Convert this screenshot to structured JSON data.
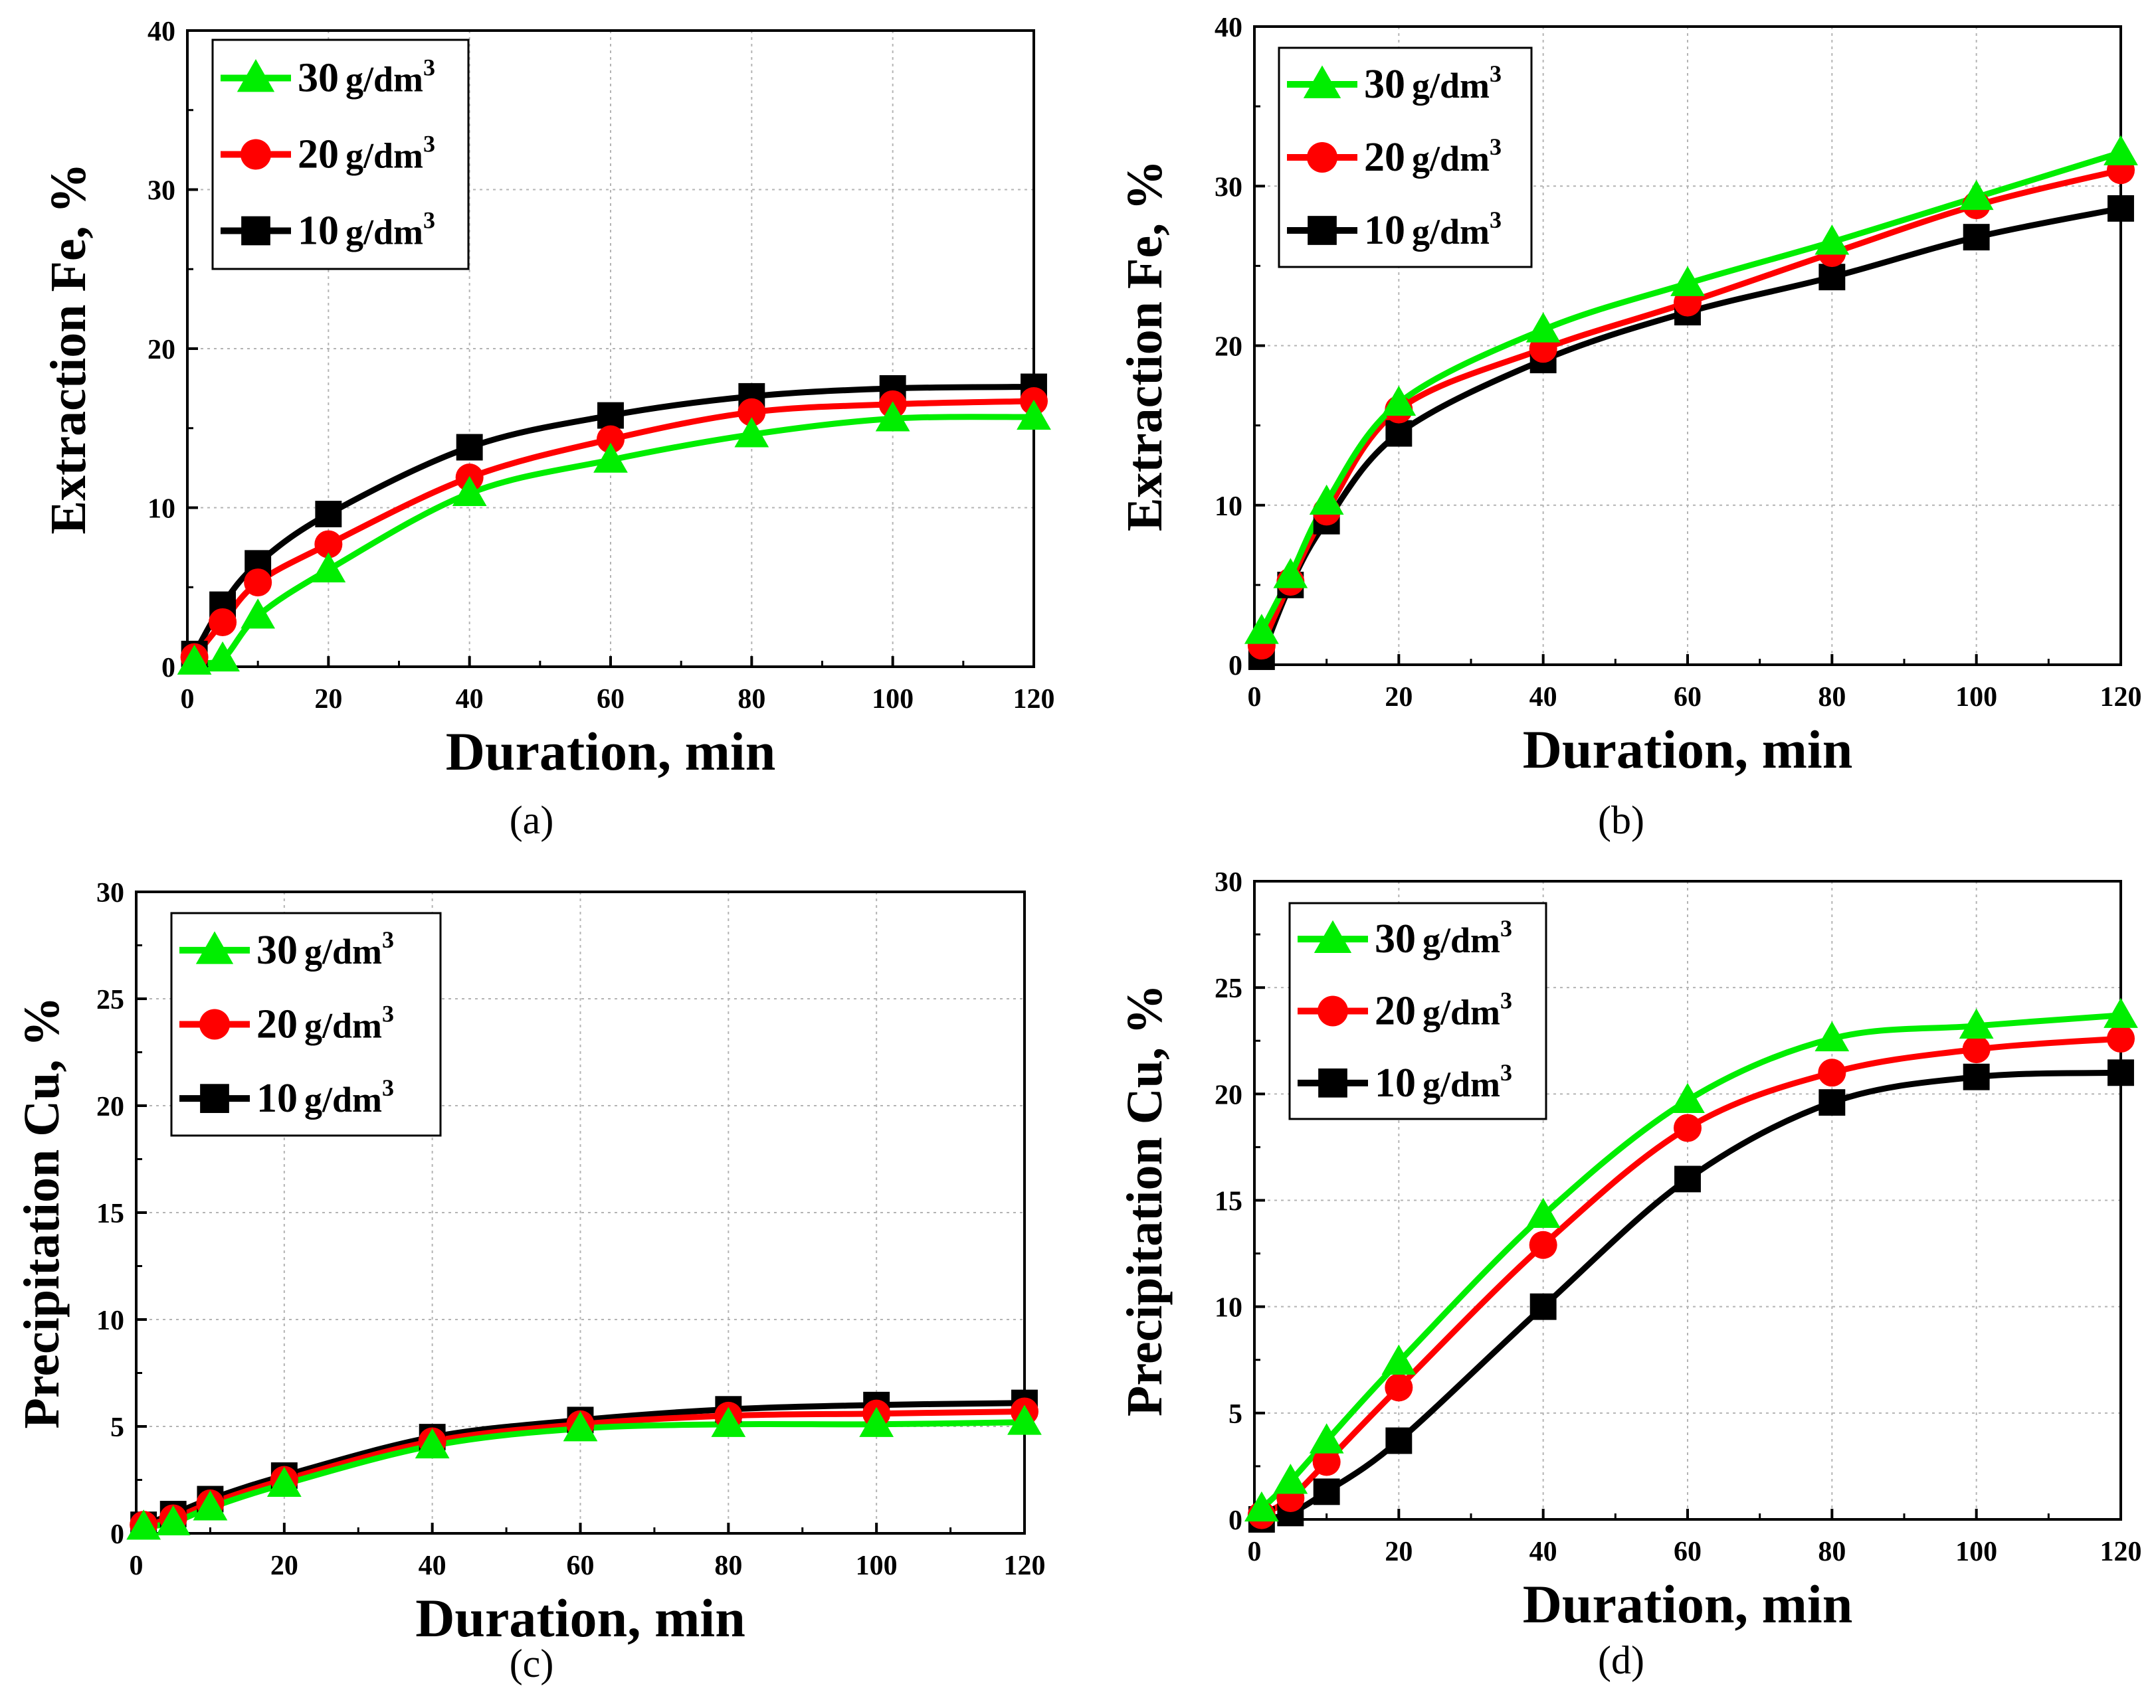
{
  "chart_data": [
    {
      "type": "line",
      "panel_label": "(a)",
      "xlabel": "Duration,  min",
      "ylabel": "Extraction Fe,  %",
      "xlim": [
        0,
        120
      ],
      "ylim": [
        0,
        40
      ],
      "xticks": [
        0,
        20,
        40,
        60,
        80,
        100,
        120
      ],
      "yticks": [
        0,
        10,
        20,
        30,
        40
      ],
      "grid": true,
      "legend_position": "top-left",
      "series": [
        {
          "name": "30 g/dm³",
          "label_num": "30",
          "label_unit": "g/dm",
          "color": "#00ee00",
          "marker": "triangle",
          "x": [
            1,
            5,
            10,
            20,
            40,
            60,
            80,
            100,
            120
          ],
          "y": [
            0.3,
            0.5,
            3.2,
            6.1,
            10.9,
            13.0,
            14.6,
            15.6,
            15.7
          ]
        },
        {
          "name": "20 g/dm³",
          "label_num": "20",
          "label_unit": "g/dm",
          "color": "#ff0000",
          "marker": "circle",
          "x": [
            1,
            5,
            10,
            20,
            40,
            60,
            80,
            100,
            120
          ],
          "y": [
            0.6,
            2.8,
            5.3,
            7.7,
            11.9,
            14.3,
            16.0,
            16.5,
            16.7
          ]
        },
        {
          "name": "10 g/dm³",
          "label_num": "10",
          "label_unit": "g/dm",
          "color": "#000000",
          "marker": "square",
          "x": [
            1,
            5,
            10,
            20,
            40,
            60,
            80,
            100,
            120
          ],
          "y": [
            0.8,
            3.9,
            6.5,
            9.6,
            13.8,
            15.8,
            17.0,
            17.5,
            17.6
          ]
        }
      ]
    },
    {
      "type": "line",
      "panel_label": "(b)",
      "xlabel": "Duration,  min",
      "ylabel": "Extraction Fe,  %",
      "xlim": [
        0,
        120
      ],
      "ylim": [
        0,
        40
      ],
      "xticks": [
        0,
        20,
        40,
        60,
        80,
        100,
        120
      ],
      "yticks": [
        0,
        10,
        20,
        30,
        40
      ],
      "grid": true,
      "legend_position": "top-left",
      "series": [
        {
          "name": "30 g/dm³",
          "label_num": "30",
          "label_unit": "g/dm",
          "color": "#00ee00",
          "marker": "triangle",
          "x": [
            1,
            5,
            10,
            20,
            40,
            60,
            80,
            100,
            120
          ],
          "y": [
            2.1,
            5.6,
            10.2,
            16.4,
            21.0,
            23.9,
            26.5,
            29.3,
            32.1
          ]
        },
        {
          "name": "20 g/dm³",
          "label_num": "20",
          "label_unit": "g/dm",
          "color": "#ff0000",
          "marker": "circle",
          "x": [
            1,
            5,
            10,
            20,
            40,
            60,
            80,
            100,
            120
          ],
          "y": [
            1.2,
            5.2,
            9.6,
            16.0,
            19.8,
            22.7,
            25.8,
            28.8,
            31.0
          ]
        },
        {
          "name": "10 g/dm³",
          "label_num": "10",
          "label_unit": "g/dm",
          "color": "#000000",
          "marker": "square",
          "x": [
            1,
            5,
            10,
            20,
            40,
            60,
            80,
            100,
            120
          ],
          "y": [
            0.5,
            5.0,
            9.0,
            14.5,
            19.1,
            22.1,
            24.3,
            26.8,
            28.6
          ]
        }
      ]
    },
    {
      "type": "line",
      "panel_label": "(c)",
      "xlabel": "Duration,  min",
      "ylabel": "Precipitation Cu,  %",
      "xlim": [
        0,
        120
      ],
      "ylim": [
        0,
        30
      ],
      "xticks": [
        0,
        20,
        40,
        60,
        80,
        100,
        120
      ],
      "yticks": [
        0,
        5,
        10,
        15,
        20,
        25,
        30
      ],
      "grid": true,
      "legend_position": "top-left",
      "series": [
        {
          "name": "30 g/dm³",
          "label_num": "30",
          "label_unit": "g/dm",
          "color": "#00ee00",
          "marker": "triangle",
          "x": [
            1,
            5,
            10,
            20,
            40,
            60,
            80,
            100,
            120
          ],
          "y": [
            0.3,
            0.5,
            1.2,
            2.3,
            4.1,
            4.9,
            5.1,
            5.1,
            5.2
          ]
        },
        {
          "name": "20 g/dm³",
          "label_num": "20",
          "label_unit": "g/dm",
          "color": "#ff0000",
          "marker": "circle",
          "x": [
            1,
            5,
            10,
            20,
            40,
            60,
            80,
            100,
            120
          ],
          "y": [
            0.4,
            0.7,
            1.4,
            2.5,
            4.3,
            5.1,
            5.5,
            5.6,
            5.7
          ]
        },
        {
          "name": "10 g/dm³",
          "label_num": "10",
          "label_unit": "g/dm",
          "color": "#000000",
          "marker": "square",
          "x": [
            1,
            5,
            10,
            20,
            40,
            60,
            80,
            100,
            120
          ],
          "y": [
            0.4,
            0.9,
            1.6,
            2.7,
            4.5,
            5.3,
            5.8,
            6.0,
            6.1
          ]
        }
      ]
    },
    {
      "type": "line",
      "panel_label": "(d)",
      "xlabel": "Duration, min",
      "ylabel": "Precipitation Cu,  %",
      "xlim": [
        0,
        120
      ],
      "ylim": [
        0,
        30
      ],
      "xticks": [
        0,
        20,
        40,
        60,
        80,
        100,
        120
      ],
      "yticks": [
        0,
        5,
        10,
        15,
        20,
        25,
        30
      ],
      "grid": true,
      "legend_position": "top-left",
      "series": [
        {
          "name": "30 g/dm³",
          "label_num": "30",
          "label_unit": "g/dm",
          "color": "#00ee00",
          "marker": "triangle",
          "x": [
            1,
            5,
            10,
            20,
            40,
            60,
            80,
            100,
            120
          ],
          "y": [
            0.5,
            1.8,
            3.7,
            7.4,
            14.3,
            19.7,
            22.6,
            23.2,
            23.7
          ]
        },
        {
          "name": "20 g/dm³",
          "label_num": "20",
          "label_unit": "g/dm",
          "color": "#ff0000",
          "marker": "circle",
          "x": [
            1,
            5,
            10,
            20,
            40,
            60,
            80,
            100,
            120
          ],
          "y": [
            0.2,
            1.0,
            2.7,
            6.2,
            12.9,
            18.4,
            21.0,
            22.1,
            22.6
          ]
        },
        {
          "name": "10 g/dm³",
          "label_num": "10",
          "label_unit": "g/dm",
          "color": "#000000",
          "marker": "square",
          "x": [
            1,
            5,
            10,
            20,
            40,
            60,
            80,
            100,
            120
          ],
          "y": [
            0.0,
            0.3,
            1.3,
            3.7,
            10.0,
            16.0,
            19.6,
            20.8,
            21.0
          ]
        }
      ]
    }
  ]
}
